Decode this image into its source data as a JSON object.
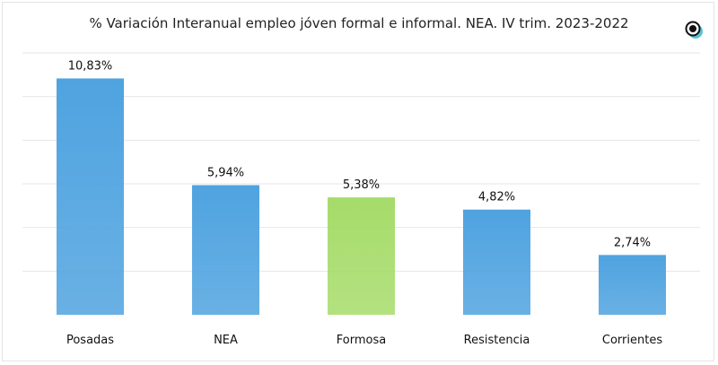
{
  "chart_data": {
    "type": "bar",
    "title": "% Variación Interanual empleo jóven formal e informal. NEA. IV trim. 2023-2022",
    "categories": [
      "Posadas",
      "NEA",
      "Formosa",
      "Resistencia",
      "Corrientes"
    ],
    "values": [
      10.83,
      5.94,
      5.38,
      4.82,
      2.74
    ],
    "data_labels": [
      "10,83%",
      "5,94%",
      "5,38%",
      "4,82%",
      "2,74%"
    ],
    "colors": [
      "#4fa3e0",
      "#4fa3e0",
      "#a6dc6a",
      "#4fa3e0",
      "#4fa3e0"
    ],
    "xlabel": "",
    "ylabel": "",
    "ylim": [
      0,
      12
    ],
    "ytick_step": 2,
    "yticks_shown": false,
    "grid": true,
    "legend": "none"
  },
  "logo": {
    "icon": "eye-logo-icon",
    "color": "#3bb9c9"
  }
}
